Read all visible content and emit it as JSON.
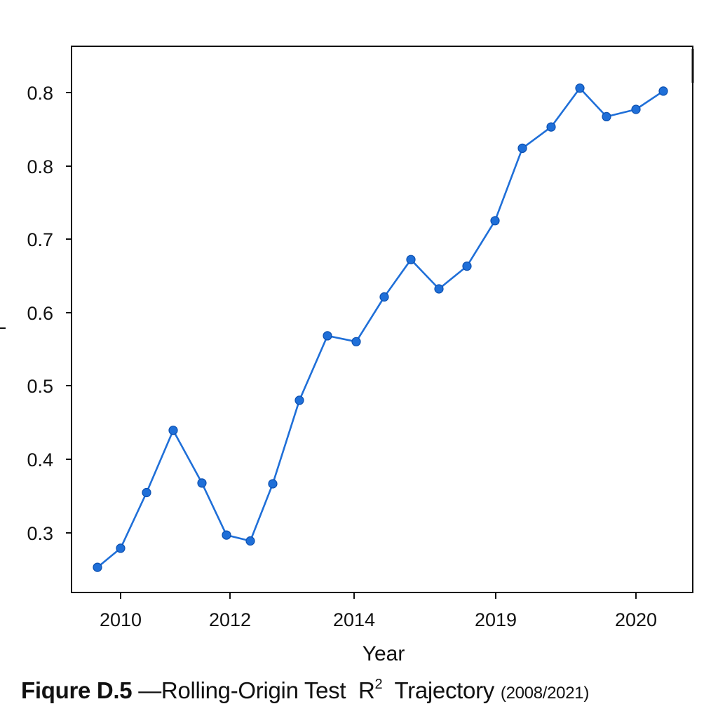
{
  "chart_data": {
    "type": "line",
    "xlabel": "Year",
    "ylabel": "",
    "x_ticks": [
      "2010",
      "2012",
      "2014",
      "2019",
      "2020"
    ],
    "y_ticks": [
      "0.3",
      "0.4",
      "0.5",
      "0.6",
      "0.7",
      "0.8",
      "0.8"
    ],
    "grid": false,
    "line_color": "#1f6fd8",
    "series": [
      {
        "values": [
          0.253,
          0.279,
          0.355,
          0.44,
          0.368,
          0.297,
          0.289,
          0.367,
          0.481,
          0.569,
          0.561,
          0.622,
          0.673,
          0.633,
          0.664,
          0.726,
          0.825,
          0.854,
          0.907,
          0.868,
          0.878,
          0.903
        ]
      }
    ]
  },
  "caption": {
    "figure_label": "Fiqure D.5",
    "title_prefix": "—Rolling-Origin Test",
    "r": "R",
    "superscript": "2",
    "title_suffix": "Trajectory",
    "range": "(2008/2021)"
  }
}
